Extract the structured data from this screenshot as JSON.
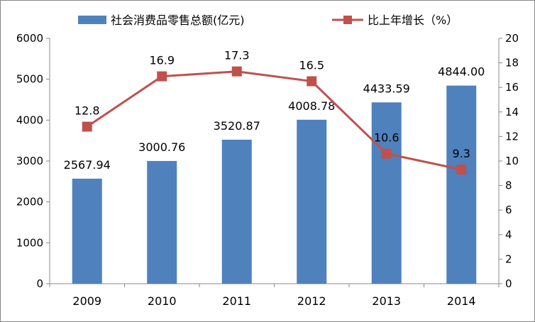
{
  "chart_data": {
    "type": "bar",
    "categories": [
      "2009",
      "2010",
      "2011",
      "2012",
      "2013",
      "2014"
    ],
    "series": [
      {
        "name": "社会消费品零售总额(亿元)",
        "type": "bar",
        "axis": "left",
        "color": "#4F81BD",
        "values": [
          2567.94,
          3000.76,
          3520.87,
          4008.78,
          4433.59,
          4844.0
        ],
        "labels": [
          "2567.94",
          "3000.76",
          "3520.87",
          "4008.78",
          "4433.59",
          "4844.00"
        ]
      },
      {
        "name": "比上年增长（%）",
        "type": "line",
        "axis": "right",
        "color": "#C0504D",
        "marker": "square",
        "values": [
          12.8,
          16.9,
          17.3,
          16.5,
          10.6,
          9.3
        ],
        "labels": [
          "12.8",
          "16.9",
          "17.3",
          "16.5",
          "10.6",
          "9.3"
        ]
      }
    ],
    "left_axis": {
      "ylim": [
        0,
        6000
      ],
      "ticks": [
        "0",
        "1000",
        "2000",
        "3000",
        "4000",
        "5000",
        "6000"
      ]
    },
    "right_axis": {
      "ylim": [
        0,
        20
      ],
      "ticks": [
        "0",
        "2",
        "4",
        "6",
        "8",
        "10",
        "12",
        "14",
        "16",
        "18",
        "20"
      ]
    },
    "grid": false,
    "legend_position": "top"
  }
}
